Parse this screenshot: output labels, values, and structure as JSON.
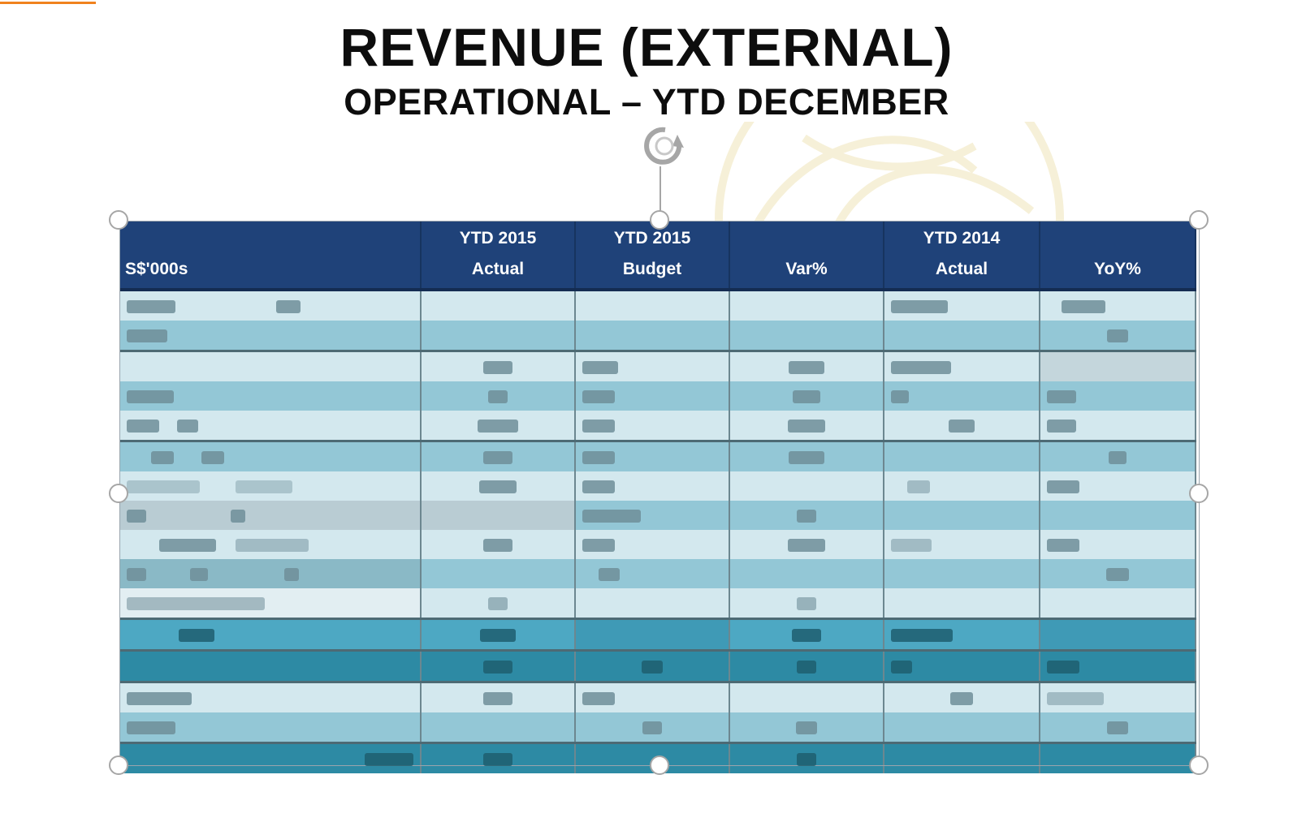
{
  "slide": {
    "title": "REVENUE (EXTERNAL)",
    "subtitle": "OPERATIONAL – YTD DECEMBER"
  },
  "icons": {
    "rotate": "rotate-handle-icon",
    "watermark": "globe-watermark"
  },
  "colors": {
    "header": "#1f4279",
    "row_light": "#d3e8ee",
    "row_mid": "#93c7d6",
    "row_dark": "#2d8aa4",
    "accent": "#f0821e"
  },
  "table": {
    "headers": [
      {
        "line1": "",
        "line2": "S$'000s"
      },
      {
        "line1": "YTD 2015",
        "line2": "Actual"
      },
      {
        "line1": "YTD 2015",
        "line2": "Budget"
      },
      {
        "line1": "",
        "line2": "Var%"
      },
      {
        "line1": "YTD 2014",
        "line2": "Actual"
      },
      {
        "line1": "",
        "line2": "YoY%"
      }
    ]
  }
}
